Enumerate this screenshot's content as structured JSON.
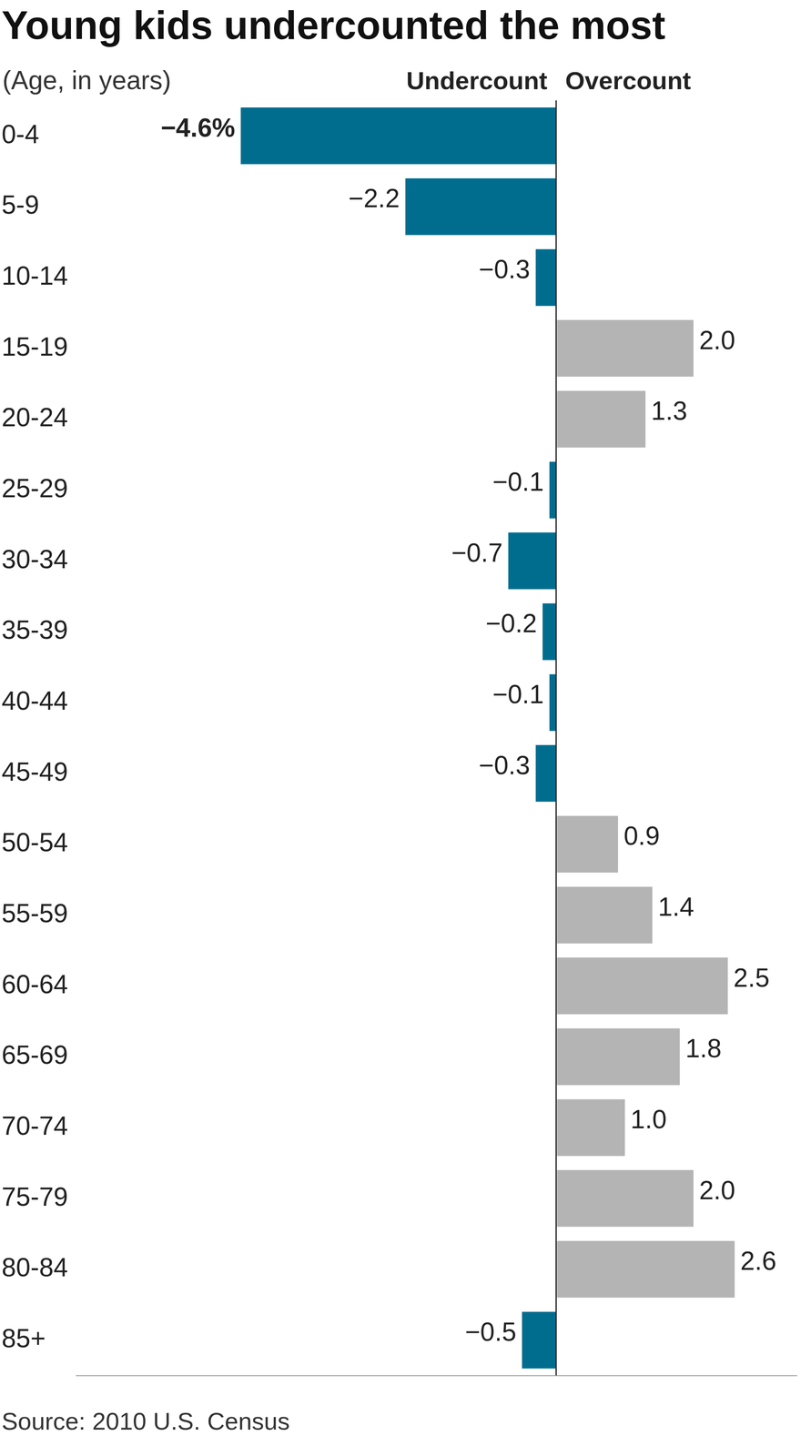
{
  "chart_data": {
    "type": "bar",
    "title": "Young kids undercounted the most",
    "subtitle": "(Age, in years)",
    "annotations": [
      "Undercount",
      "Overcount"
    ],
    "source": "Source: 2010 U.S. Census",
    "categories": [
      "0-4",
      "5-9",
      "10-14",
      "15-19",
      "20-24",
      "25-29",
      "30-34",
      "35-39",
      "40-44",
      "45-49",
      "50-54",
      "55-59",
      "60-64",
      "65-69",
      "70-74",
      "75-79",
      "80-84",
      "85+"
    ],
    "values": [
      -4.6,
      -2.2,
      -0.3,
      2.0,
      1.3,
      -0.1,
      -0.7,
      -0.2,
      -0.1,
      -0.3,
      0.9,
      1.4,
      2.5,
      1.8,
      1.0,
      2.0,
      2.6,
      -0.5
    ],
    "value_labels": [
      "−4.6%",
      "−2.2",
      "−0.3",
      "2.0",
      "1.3",
      "−0.1",
      "−0.7",
      "−0.2",
      "−0.1",
      "−0.3",
      "0.9",
      "1.4",
      "2.5",
      "1.8",
      "1.0",
      "2.0",
      "2.6",
      "−0.5"
    ],
    "colors": [
      "#006d8f",
      "#006d8f",
      "#006d8f",
      "#b4b4b4",
      "#b4b4b4",
      "#006d8f",
      "#006d8f",
      "#006d8f",
      "#006d8f",
      "#006d8f",
      "#b4b4b4",
      "#b4b4b4",
      "#b4b4b4",
      "#b4b4b4",
      "#b4b4b4",
      "#b4b4b4",
      "#b4b4b4",
      "#006d8f"
    ],
    "orientation": "horizontal",
    "data_labels": true,
    "tick_labels": "y",
    "grid": true,
    "xlim": [
      -7,
      3.5
    ],
    "xticks": [
      0
    ]
  }
}
